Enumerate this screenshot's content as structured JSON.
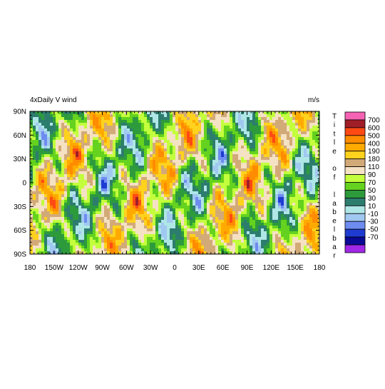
{
  "title": "4xDaily V wind",
  "units": "m/s",
  "lon_ticks": [
    {
      "value": -180,
      "label": "180"
    },
    {
      "value": -150,
      "label": "150W"
    },
    {
      "value": -120,
      "label": "120W"
    },
    {
      "value": -90,
      "label": "90W"
    },
    {
      "value": -60,
      "label": "60W"
    },
    {
      "value": -30,
      "label": "30W"
    },
    0,
    {
      "value": 30,
      "label": "30E"
    },
    {
      "value": 60,
      "label": "60E"
    },
    {
      "value": 90,
      "label": "90E"
    },
    {
      "value": 120,
      "label": "120E"
    },
    {
      "value": 150,
      "label": "150E"
    },
    {
      "value": 180,
      "label": "180"
    }
  ],
  "lat_ticks": [
    {
      "value": 90,
      "label": "90N"
    },
    {
      "value": 60,
      "label": "60N"
    },
    {
      "value": 30,
      "label": "30N"
    },
    0,
    {
      "value": -30,
      "label": "30S"
    },
    {
      "value": -60,
      "label": "60S"
    },
    {
      "value": -90,
      "label": "90S"
    }
  ],
  "lonlim": [
    -180,
    180
  ],
  "latlim": [
    -90,
    90
  ],
  "labelbar": {
    "title": "Title of labelbar",
    "levels": [
      700,
      600,
      500,
      400,
      190,
      180,
      110,
      90,
      70,
      50,
      30,
      10,
      -10,
      -30,
      -50,
      -70
    ],
    "colors": [
      "#f564b4",
      "#a01e28",
      "#ff4a14",
      "#ff8c00",
      "#ffaa00",
      "#ffd21e",
      "#d2aa78",
      "#f5e1c3",
      "#c3ff3c",
      "#64d21e",
      "#2d9b3c",
      "#2d7d6e",
      "#afe6e6",
      "#a0c8f0",
      "#6e8cf0",
      "#1e3cd2",
      "#0a0a96",
      "#a028e6"
    ]
  }
}
